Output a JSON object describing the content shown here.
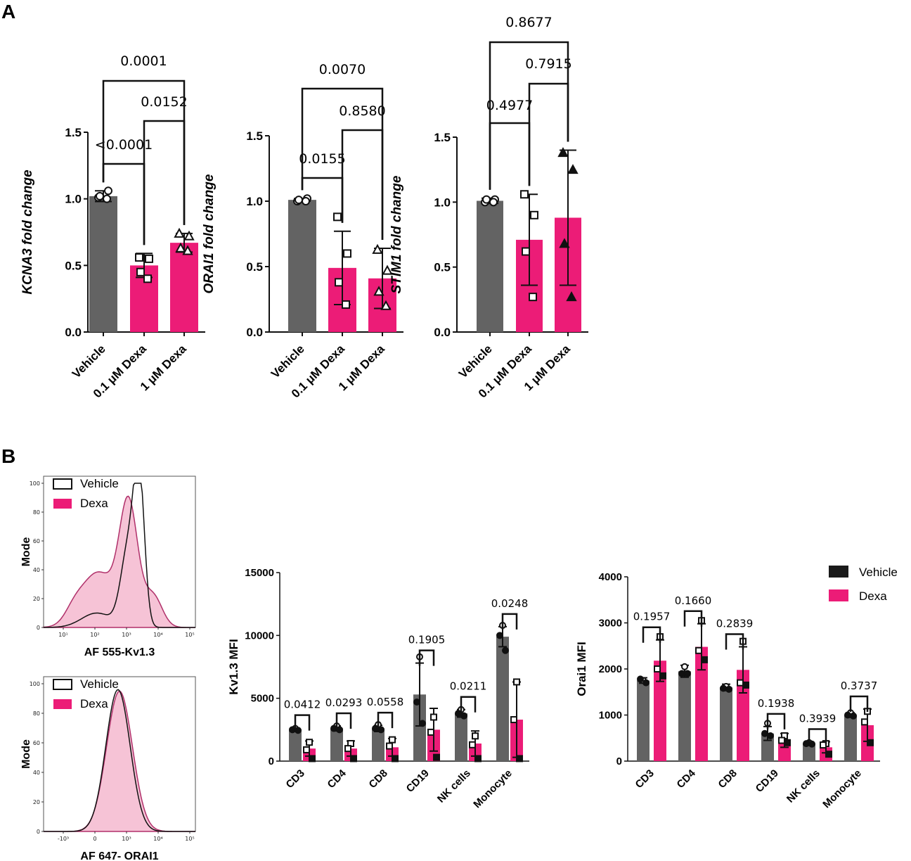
{
  "panels": {
    "a": "A",
    "b": "B"
  },
  "colors": {
    "vehicle": "#636363",
    "dexa": "#ec1c77",
    "dexa_fill": "#f6c3d6"
  },
  "legend": {
    "vehicle": "Vehicle",
    "dexa": "Dexa"
  },
  "chart_data": [
    {
      "type": "bar",
      "id": "kcna3",
      "ylabel": "KCNA3 fold change",
      "ylim": [
        0,
        1.5
      ],
      "yticks": [
        "0.0",
        "0.5",
        "1.0",
        "1.5"
      ],
      "categories": [
        "Vehicle",
        "0.1 μM Dexa",
        "1 μM Dexa"
      ],
      "values": [
        1.02,
        0.5,
        0.67
      ],
      "sd": [
        0.04,
        0.09,
        0.07
      ],
      "points": [
        [
          1.01,
          1.06,
          1.02,
          1.0
        ],
        [
          0.56,
          0.55,
          0.45,
          0.4
        ],
        [
          0.74,
          0.72,
          0.63,
          0.61
        ]
      ],
      "markers": [
        "circle",
        "square",
        "triangle"
      ],
      "comparisons": [
        {
          "from": 0,
          "to": 1,
          "label": "<0.0001"
        },
        {
          "from": 1,
          "to": 2,
          "label": "0.0152"
        },
        {
          "from": 0,
          "to": 2,
          "label": "0.0001"
        }
      ]
    },
    {
      "type": "bar",
      "id": "orai1",
      "ylabel": "ORAI1 fold change",
      "ylim": [
        0,
        1.5
      ],
      "yticks": [
        "0.0",
        "0.5",
        "1.0",
        "1.5"
      ],
      "categories": [
        "Vehicle",
        "0.1 μM Dexa",
        "1 μM Dexa"
      ],
      "values": [
        1.01,
        0.49,
        0.41
      ],
      "sd": [
        0.01,
        0.28,
        0.23
      ],
      "points": [
        [
          1.0,
          1.02,
          1.01,
          1.0
        ],
        [
          0.88,
          0.6,
          0.38,
          0.21
        ],
        [
          0.63,
          0.47,
          0.31,
          0.2
        ]
      ],
      "markers": [
        "circle",
        "square",
        "triangle"
      ],
      "comparisons": [
        {
          "from": 0,
          "to": 1,
          "label": "0.0155"
        },
        {
          "from": 1,
          "to": 2,
          "label": "0.8580"
        },
        {
          "from": 0,
          "to": 2,
          "label": "0.0070"
        }
      ]
    },
    {
      "type": "bar",
      "id": "stim1",
      "ylabel": "STIM1 fold change",
      "ylim": [
        0,
        1.5
      ],
      "yticks": [
        "0.0",
        "0.5",
        "1.0",
        "1.5"
      ],
      "categories": [
        "Vehicle",
        "0.1 μM Dexa",
        "1 μM Dexa"
      ],
      "values": [
        1.01,
        0.71,
        0.88
      ],
      "sd": [
        0.02,
        0.35,
        0.52
      ],
      "points": [
        [
          1.0,
          1.02,
          1.02,
          1.0
        ],
        [
          1.06,
          0.9,
          0.62,
          0.27
        ],
        [
          1.38,
          1.25,
          0.68,
          0.27
        ]
      ],
      "markers": [
        "circle",
        "square",
        "triangle"
      ],
      "comparisons": [
        {
          "from": 0,
          "to": 1,
          "label": "0.4977"
        },
        {
          "from": 1,
          "to": 2,
          "label": "0.7915"
        },
        {
          "from": 0,
          "to": 2,
          "label": "0.8677"
        }
      ]
    },
    {
      "type": "bar",
      "id": "kv13-mfi",
      "ylabel": "Kv1.3 MFI",
      "ylim": [
        0,
        15000
      ],
      "yticks": [
        "0",
        "5000",
        "10000",
        "15000"
      ],
      "categories": [
        "CD3",
        "CD4",
        "CD8",
        "CD19",
        "NK cells",
        "Monocyte"
      ],
      "series": [
        {
          "name": "Vehicle",
          "values": [
            2500,
            2600,
            2600,
            5300,
            3800,
            9900
          ],
          "sd": [
            150,
            200,
            250,
            2500,
            300,
            800
          ],
          "points": [
            [
              2600,
              2500,
              2450
            ],
            [
              2800,
              2600,
              2500
            ],
            [
              2900,
              2600,
              2500
            ],
            [
              8300,
              4700,
              3000
            ],
            [
              4100,
              3800,
              3600
            ],
            [
              10800,
              10000,
              8800
            ]
          ]
        },
        {
          "name": "Dexa",
          "values": [
            1000,
            1000,
            1100,
            2500,
            1400,
            3300
          ],
          "sd": [
            600,
            600,
            700,
            1700,
            1000,
            3000
          ],
          "points": [
            [
              1500,
              900,
              200
            ],
            [
              1400,
              1000,
              200
            ],
            [
              1700,
              1200,
              200
            ],
            [
              3500,
              2300,
              300
            ],
            [
              2000,
              1300,
              200
            ],
            [
              6300,
              3300,
              200
            ]
          ]
        }
      ],
      "pvalues": [
        "0.0412",
        "0.0293",
        "0.0558",
        "0.1905",
        "0.0211",
        "0.0248"
      ]
    },
    {
      "type": "bar",
      "id": "orai1-mfi",
      "ylabel": "Orai1 MFI",
      "ylim": [
        0,
        4000
      ],
      "yticks": [
        "0",
        "1000",
        "2000",
        "3000",
        "4000"
      ],
      "categories": [
        "CD3",
        "CD4",
        "CD8",
        "CD19",
        "NK cells",
        "Monocyte"
      ],
      "series": [
        {
          "name": "Vehicle",
          "values": [
            1750,
            1950,
            1600,
            600,
            380,
            1000
          ],
          "sd": [
            60,
            130,
            70,
            150,
            30,
            50
          ],
          "points": [
            [
              1750,
              1780,
              1700
            ],
            [
              2050,
              1900,
              1900
            ],
            [
              1620,
              1580,
              1560
            ],
            [
              820,
              600,
              550
            ],
            [
              400,
              380,
              370
            ],
            [
              1050,
              1000,
              980
            ]
          ]
        },
        {
          "name": "Dexa",
          "values": [
            2180,
            2480,
            1980,
            450,
            300,
            780
          ],
          "sd": [
            450,
            500,
            500,
            150,
            120,
            350
          ],
          "points": [
            [
              2700,
              2000,
              1850
            ],
            [
              3050,
              2400,
              2200
            ],
            [
              2600,
              1700,
              1650
            ],
            [
              550,
              450,
              400
            ],
            [
              380,
              350,
              150
            ],
            [
              1080,
              850,
              400
            ]
          ]
        }
      ],
      "pvalues": [
        "0.1957",
        "0.1660",
        "0.2839",
        "0.1938",
        "0.3939",
        "0.3737"
      ]
    }
  ],
  "histograms": [
    {
      "id": "hist-kv13",
      "xlabel": "AF 555-Kv1.3",
      "ylabel": "Mode",
      "yticks": [
        "0",
        "20",
        "40",
        "60",
        "80",
        "100"
      ],
      "xticks": [
        "10¹",
        "10²",
        "10³",
        "10⁴",
        "10⁵"
      ]
    },
    {
      "id": "hist-orai1",
      "xlabel": "AF 647- ORAI1",
      "ylabel": "Mode",
      "yticks": [
        "0",
        "20",
        "40",
        "60",
        "80",
        "100"
      ],
      "xticks": [
        "-10³",
        "0",
        "10³",
        "10⁴",
        "10⁵"
      ]
    }
  ]
}
